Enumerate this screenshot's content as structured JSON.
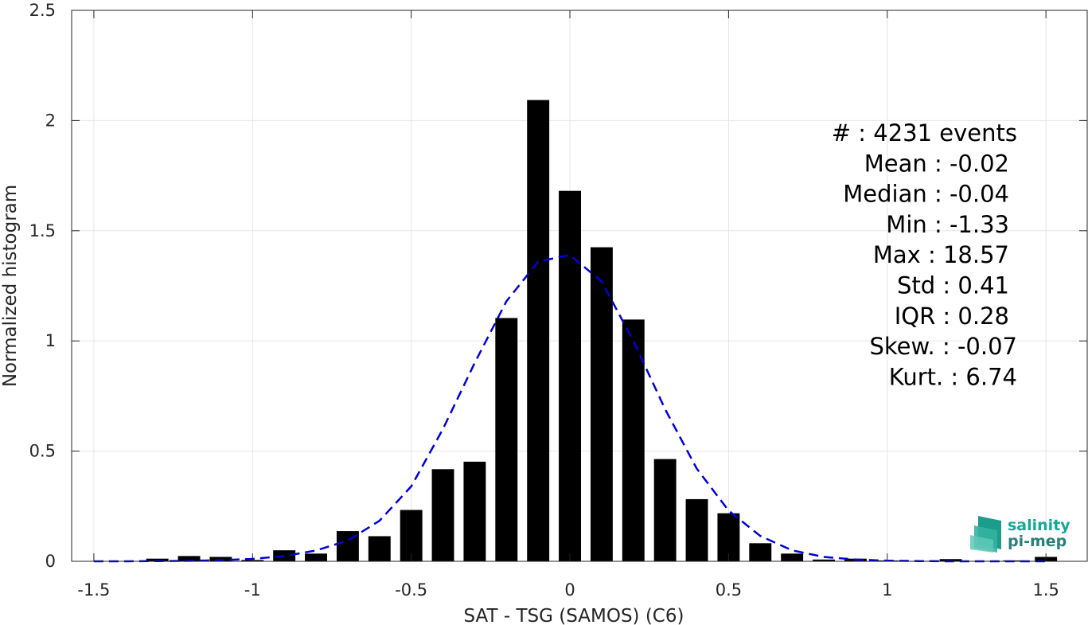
{
  "chart_data": {
    "type": "bar",
    "xlabel": "SAT - TSG (SAMOS) (C6)",
    "ylabel": "Normalized histogram",
    "xlim": [
      -1.57,
      1.63
    ],
    "ylim": [
      0,
      2.5
    ],
    "xticks": [
      -1.5,
      -1,
      -0.5,
      0,
      0.5,
      1,
      1.5
    ],
    "xtick_labels": [
      "-1.5",
      "-1",
      "-0.5",
      "0",
      "0.5",
      "1",
      "1.5"
    ],
    "yticks": [
      0,
      0.5,
      1,
      1.5,
      2,
      2.5
    ],
    "ytick_labels": [
      "0",
      "0.5",
      "1",
      "1.5",
      "2",
      "2.5"
    ],
    "grid": true,
    "bar_width": 0.07,
    "bar_color": "#000000",
    "bars": {
      "x": [
        -1.3,
        -1.2,
        -1.1,
        -1.0,
        -0.9,
        -0.8,
        -0.7,
        -0.6,
        -0.5,
        -0.4,
        -0.3,
        -0.2,
        -0.1,
        0.0,
        0.1,
        0.2,
        0.3,
        0.4,
        0.5,
        0.6,
        0.7,
        0.8,
        0.9,
        1.0,
        1.1,
        1.2,
        1.3,
        1.4,
        1.5
      ],
      "values": [
        0.012,
        0.024,
        0.02,
        0.006,
        0.05,
        0.035,
        0.137,
        0.114,
        0.233,
        0.418,
        0.452,
        1.104,
        2.093,
        1.681,
        1.425,
        1.097,
        0.464,
        0.282,
        0.218,
        0.082,
        0.035,
        0.008,
        0.012,
        0.004,
        0.002,
        0.01,
        0.002,
        0.004,
        0.02
      ]
    },
    "fit_curve": {
      "style": "dashed",
      "color": "#0000dd",
      "x": [
        -1.5,
        -1.4,
        -1.3,
        -1.2,
        -1.1,
        -1.0,
        -0.9,
        -0.8,
        -0.7,
        -0.6,
        -0.5,
        -0.4,
        -0.3,
        -0.2,
        -0.1,
        0.0,
        0.1,
        0.2,
        0.3,
        0.4,
        0.5,
        0.6,
        0.7,
        0.8,
        0.9,
        1.0,
        1.1,
        1.2,
        1.3,
        1.4,
        1.5
      ],
      "y": [
        0.0,
        0.0,
        0.001,
        0.002,
        0.005,
        0.011,
        0.024,
        0.049,
        0.094,
        0.184,
        0.34,
        0.6,
        0.9,
        1.18,
        1.36,
        1.39,
        1.27,
        1.0,
        0.69,
        0.42,
        0.23,
        0.115,
        0.05,
        0.02,
        0.008,
        0.003,
        0.001,
        0.0,
        0.0,
        0.0,
        0.0
      ]
    },
    "stats_lines": [
      "#  : 4231 events",
      "Mean : -0.02",
      "Median : -0.04",
      "Min : -1.33",
      "Max : 18.57",
      "Std : 0.41",
      "IQR : 0.28",
      "Skew. : -0.07",
      "Kurt. : 6.74"
    ]
  },
  "logo": {
    "line1": "salinity",
    "line2": "pi-mep"
  }
}
